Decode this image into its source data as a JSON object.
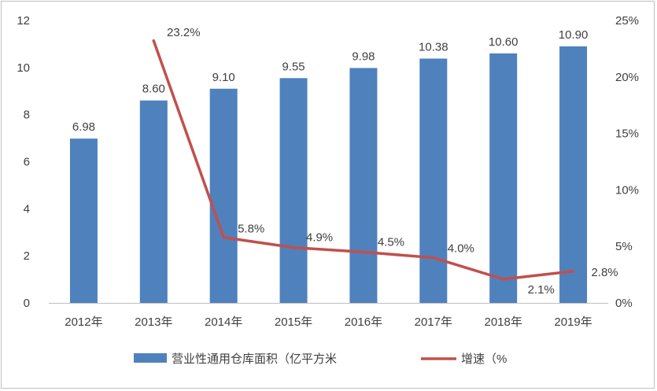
{
  "chart_data": {
    "type": "bar",
    "categories": [
      "2012年",
      "2013年",
      "2014年",
      "2015年",
      "2016年",
      "2017年",
      "2018年",
      "2019年"
    ],
    "series": [
      {
        "name": "营业性通用仓库面积（亿平方米",
        "type": "bar",
        "axis": "left",
        "values": [
          6.98,
          8.6,
          9.1,
          9.55,
          9.98,
          10.38,
          10.6,
          10.9
        ],
        "labels": [
          "6.98",
          "8.60",
          "9.10",
          "9.55",
          "9.98",
          "10.38",
          "10.60",
          "10.90"
        ],
        "color": "#4f81bd"
      },
      {
        "name": "增速（%",
        "type": "line",
        "axis": "right",
        "values": [
          null,
          23.2,
          5.8,
          4.9,
          4.5,
          4.0,
          2.1,
          2.8
        ],
        "labels": [
          "",
          "23.2%",
          "5.8%",
          "4.9%",
          "4.5%",
          "4.0%",
          "2.1%",
          "2.8%"
        ],
        "color": "#c0504d"
      }
    ],
    "y_left": {
      "min": 0,
      "max": 12,
      "ticks": [
        "0",
        "2",
        "4",
        "6",
        "8",
        "10",
        "12"
      ]
    },
    "y_right": {
      "min": 0,
      "max": 25,
      "ticks": [
        "0%",
        "5%",
        "10%",
        "15%",
        "20%",
        "25%"
      ]
    },
    "grid": false,
    "legend_position": "bottom"
  }
}
